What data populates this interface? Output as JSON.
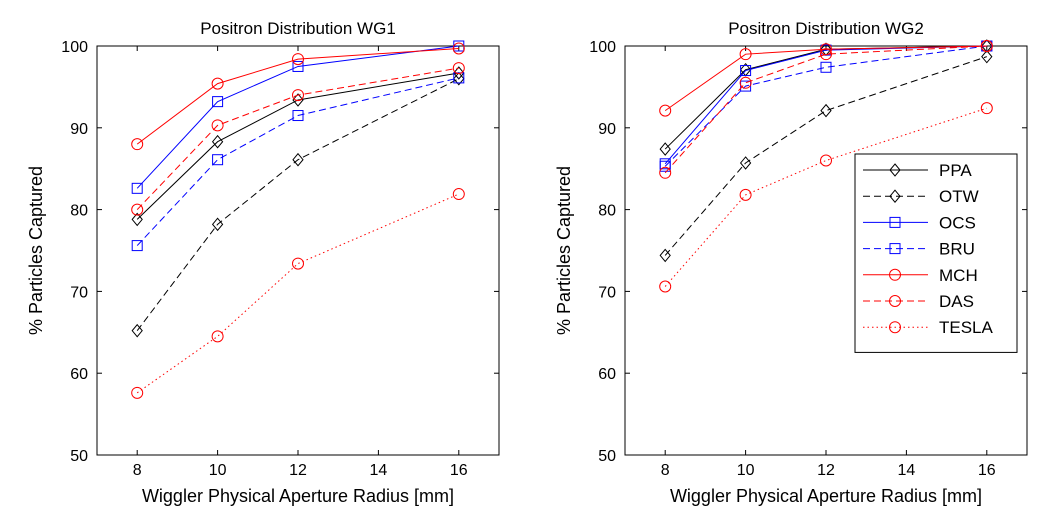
{
  "chart_data": [
    {
      "type": "line",
      "title": "Positron Distribution WG1",
      "xlabel": "Wiggler Physical Aperture Radius [mm]",
      "ylabel": "% Particles Captured",
      "xlim": [
        7,
        17
      ],
      "ylim": [
        50,
        100
      ],
      "xticks": [
        "8",
        "10",
        "12",
        "14",
        "16"
      ],
      "yticks": [
        "50",
        "60",
        "70",
        "80",
        "90",
        "100"
      ],
      "x": [
        8,
        10,
        12,
        16
      ],
      "legend": false,
      "grid": false,
      "series": [
        {
          "name": "PPA",
          "values": [
            78.8,
            88.3,
            93.4,
            96.7
          ],
          "color": "#000000",
          "dash": "solid",
          "marker": "diamond"
        },
        {
          "name": "OTW",
          "values": [
            65.2,
            78.2,
            86.1,
            96.0
          ],
          "color": "#000000",
          "dash": "dashed",
          "marker": "diamond"
        },
        {
          "name": "OCS",
          "values": [
            82.6,
            93.2,
            97.5,
            100.0
          ],
          "color": "#0000ff",
          "dash": "solid",
          "marker": "square"
        },
        {
          "name": "BRU",
          "values": [
            75.6,
            86.1,
            91.5,
            96.1
          ],
          "color": "#0000ff",
          "dash": "dashed",
          "marker": "square"
        },
        {
          "name": "MCH",
          "values": [
            88.0,
            95.4,
            98.4,
            99.7
          ],
          "color": "#ff0000",
          "dash": "solid",
          "marker": "circle"
        },
        {
          "name": "DAS",
          "values": [
            80.0,
            90.3,
            94.0,
            97.3
          ],
          "color": "#ff0000",
          "dash": "dashed",
          "marker": "circle"
        },
        {
          "name": "TESLA",
          "values": [
            57.6,
            64.5,
            73.4,
            81.9
          ],
          "color": "#ff0000",
          "dash": "dotted",
          "marker": "circle"
        }
      ]
    },
    {
      "type": "line",
      "title": "Positron Distribution WG2",
      "xlabel": "Wiggler Physical Aperture Radius [mm]",
      "ylabel": "% Particles Captured",
      "xlim": [
        7,
        17
      ],
      "ylim": [
        50,
        100
      ],
      "xticks": [
        "8",
        "10",
        "12",
        "14",
        "16"
      ],
      "yticks": [
        "50",
        "60",
        "70",
        "80",
        "90",
        "100"
      ],
      "x": [
        8,
        10,
        12,
        16
      ],
      "legend": true,
      "legend_position": "right",
      "grid": false,
      "series": [
        {
          "name": "PPA",
          "values": [
            87.4,
            97.1,
            99.6,
            100.0
          ],
          "color": "#000000",
          "dash": "solid",
          "marker": "diamond"
        },
        {
          "name": "OTW",
          "values": [
            74.4,
            85.7,
            92.1,
            98.7
          ],
          "color": "#000000",
          "dash": "dashed",
          "marker": "diamond"
        },
        {
          "name": "OCS",
          "values": [
            85.6,
            97.0,
            99.5,
            100.0
          ],
          "color": "#0000ff",
          "dash": "solid",
          "marker": "square"
        },
        {
          "name": "BRU",
          "values": [
            85.3,
            95.1,
            97.4,
            100.0
          ],
          "color": "#0000ff",
          "dash": "dashed",
          "marker": "square"
        },
        {
          "name": "MCH",
          "values": [
            92.1,
            99.0,
            99.6,
            100.0
          ],
          "color": "#ff0000",
          "dash": "solid",
          "marker": "circle"
        },
        {
          "name": "DAS",
          "values": [
            84.5,
            95.5,
            99.0,
            100.0
          ],
          "color": "#ff0000",
          "dash": "dashed",
          "marker": "circle"
        },
        {
          "name": "TESLA",
          "values": [
            70.6,
            81.8,
            86.0,
            92.4
          ],
          "color": "#ff0000",
          "dash": "dotted",
          "marker": "circle"
        }
      ]
    }
  ]
}
